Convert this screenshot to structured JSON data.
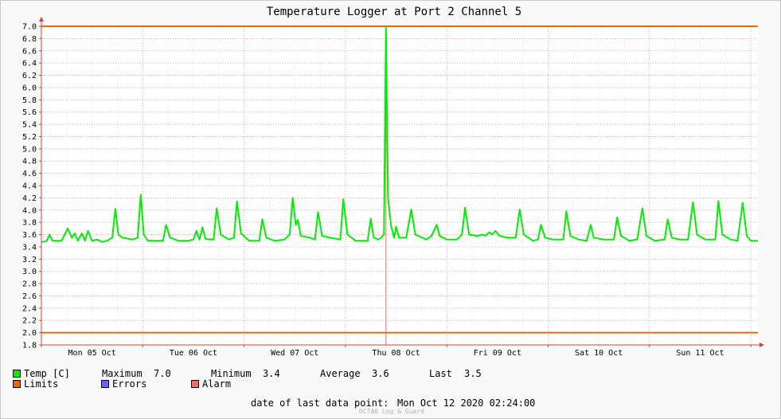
{
  "chart_data": {
    "type": "line",
    "title": "Temperature Logger at Port 2 Channel 5",
    "ylim": [
      1.8,
      7.0
    ],
    "yticks": [
      "1.8",
      "2.0",
      "2.2",
      "2.4",
      "2.6",
      "2.8",
      "3.0",
      "3.2",
      "3.4",
      "3.6",
      "3.8",
      "4.0",
      "4.2",
      "4.4",
      "4.6",
      "4.8",
      "5.0",
      "5.2",
      "5.4",
      "5.6",
      "5.8",
      "6.0",
      "6.2",
      "6.4",
      "6.6",
      "6.8",
      "7.0"
    ],
    "xticks": [
      {
        "label": "Mon 05 Oct",
        "day": 0.5
      },
      {
        "label": "Tue 06 Oct",
        "day": 1.5
      },
      {
        "label": "Wed 07 Oct",
        "day": 2.5
      },
      {
        "label": "Thu 08 Oct",
        "day": 3.5
      },
      {
        "label": "Fri 09 Oct",
        "day": 4.5
      },
      {
        "label": "Sat 10 Oct",
        "day": 5.5
      },
      {
        "label": "Sun 11 Oct",
        "day": 6.5
      }
    ],
    "xlim_days": [
      0.0,
      7.07
    ],
    "grid": true,
    "limits": [
      2.0,
      7.0
    ],
    "alarm_marker_day": 3.4,
    "series": [
      {
        "name": "Temp [C]",
        "color": "#00ee00",
        "points": [
          [
            0.0,
            3.48
          ],
          [
            0.05,
            3.49
          ],
          [
            0.08,
            3.6
          ],
          [
            0.11,
            3.5
          ],
          [
            0.2,
            3.5
          ],
          [
            0.26,
            3.7
          ],
          [
            0.3,
            3.55
          ],
          [
            0.33,
            3.62
          ],
          [
            0.36,
            3.5
          ],
          [
            0.4,
            3.62
          ],
          [
            0.43,
            3.5
          ],
          [
            0.46,
            3.66
          ],
          [
            0.5,
            3.5
          ],
          [
            0.55,
            3.52
          ],
          [
            0.6,
            3.48
          ],
          [
            0.65,
            3.5
          ],
          [
            0.7,
            3.55
          ],
          [
            0.73,
            4.02
          ],
          [
            0.76,
            3.6
          ],
          [
            0.8,
            3.55
          ],
          [
            0.9,
            3.52
          ],
          [
            0.95,
            3.55
          ],
          [
            0.98,
            4.25
          ],
          [
            1.01,
            3.6
          ],
          [
            1.05,
            3.5
          ],
          [
            1.15,
            3.5
          ],
          [
            1.2,
            3.5
          ],
          [
            1.23,
            3.76
          ],
          [
            1.27,
            3.55
          ],
          [
            1.35,
            3.5
          ],
          [
            1.45,
            3.5
          ],
          [
            1.5,
            3.52
          ],
          [
            1.53,
            3.66
          ],
          [
            1.56,
            3.52
          ],
          [
            1.59,
            3.72
          ],
          [
            1.62,
            3.53
          ],
          [
            1.7,
            3.52
          ],
          [
            1.73,
            4.03
          ],
          [
            1.77,
            3.6
          ],
          [
            1.85,
            3.52
          ],
          [
            1.9,
            3.55
          ],
          [
            1.93,
            4.14
          ],
          [
            1.97,
            3.62
          ],
          [
            2.05,
            3.5
          ],
          [
            2.15,
            3.5
          ],
          [
            2.18,
            3.85
          ],
          [
            2.22,
            3.55
          ],
          [
            2.3,
            3.5
          ],
          [
            2.4,
            3.52
          ],
          [
            2.45,
            3.6
          ],
          [
            2.48,
            4.2
          ],
          [
            2.51,
            3.76
          ],
          [
            2.53,
            3.84
          ],
          [
            2.56,
            3.58
          ],
          [
            2.65,
            3.55
          ],
          [
            2.7,
            3.52
          ],
          [
            2.73,
            3.97
          ],
          [
            2.77,
            3.58
          ],
          [
            2.85,
            3.55
          ],
          [
            2.95,
            3.52
          ],
          [
            2.98,
            4.18
          ],
          [
            3.02,
            3.6
          ],
          [
            3.1,
            3.5
          ],
          [
            3.22,
            3.5
          ],
          [
            3.25,
            3.86
          ],
          [
            3.28,
            3.55
          ],
          [
            3.33,
            3.52
          ],
          [
            3.38,
            3.6
          ],
          [
            3.4,
            6.98
          ],
          [
            3.41,
            5.55
          ],
          [
            3.42,
            4.2
          ],
          [
            3.45,
            3.75
          ],
          [
            3.48,
            3.55
          ],
          [
            3.5,
            3.73
          ],
          [
            3.53,
            3.55
          ],
          [
            3.6,
            3.55
          ],
          [
            3.65,
            4.01
          ],
          [
            3.69,
            3.6
          ],
          [
            3.8,
            3.52
          ],
          [
            3.85,
            3.58
          ],
          [
            3.9,
            3.76
          ],
          [
            3.93,
            3.58
          ],
          [
            4.0,
            3.52
          ],
          [
            4.1,
            3.52
          ],
          [
            4.15,
            3.6
          ],
          [
            4.18,
            4.04
          ],
          [
            4.22,
            3.6
          ],
          [
            4.3,
            3.58
          ],
          [
            4.35,
            3.6
          ],
          [
            4.38,
            3.58
          ],
          [
            4.42,
            3.64
          ],
          [
            4.45,
            3.6
          ],
          [
            4.48,
            3.66
          ],
          [
            4.52,
            3.58
          ],
          [
            4.6,
            3.55
          ],
          [
            4.68,
            3.55
          ],
          [
            4.72,
            4.01
          ],
          [
            4.76,
            3.6
          ],
          [
            4.85,
            3.5
          ],
          [
            4.9,
            3.52
          ],
          [
            4.93,
            3.76
          ],
          [
            4.97,
            3.55
          ],
          [
            5.05,
            3.52
          ],
          [
            5.15,
            3.52
          ],
          [
            5.18,
            3.98
          ],
          [
            5.22,
            3.58
          ],
          [
            5.3,
            3.52
          ],
          [
            5.38,
            3.5
          ],
          [
            5.42,
            3.76
          ],
          [
            5.45,
            3.55
          ],
          [
            5.55,
            3.52
          ],
          [
            5.65,
            3.52
          ],
          [
            5.68,
            3.88
          ],
          [
            5.72,
            3.58
          ],
          [
            5.8,
            3.5
          ],
          [
            5.88,
            3.52
          ],
          [
            5.93,
            4.03
          ],
          [
            5.97,
            3.58
          ],
          [
            6.05,
            3.5
          ],
          [
            6.15,
            3.52
          ],
          [
            6.18,
            3.85
          ],
          [
            6.22,
            3.55
          ],
          [
            6.3,
            3.52
          ],
          [
            6.38,
            3.52
          ],
          [
            6.43,
            4.13
          ],
          [
            6.47,
            3.6
          ],
          [
            6.55,
            3.52
          ],
          [
            6.65,
            3.52
          ],
          [
            6.68,
            4.15
          ],
          [
            6.72,
            3.6
          ],
          [
            6.8,
            3.52
          ],
          [
            6.87,
            3.5
          ],
          [
            6.92,
            4.12
          ],
          [
            6.96,
            3.58
          ],
          [
            7.0,
            3.5
          ],
          [
            7.07,
            3.5
          ]
        ]
      }
    ]
  },
  "legend": {
    "temp_label": "Temp [C]",
    "temp_color": "#00ee00",
    "max_label": "Maximum",
    "max_value": "7.0",
    "min_label": "Minimum",
    "min_value": "3.4",
    "avg_label": "Average",
    "avg_value": "3.6",
    "last_label": "Last",
    "last_value": "3.5",
    "limits_label": "Limits",
    "limits_color": "#ee6600",
    "errors_label": "Errors",
    "errors_color": "#6666ff",
    "alarm_label": "Alarm",
    "alarm_color": "#ff6666"
  },
  "footer": {
    "last_point_label": "date of last data point:",
    "last_point_value": "Mon Oct 12 2020 02:24:00",
    "watermark": "OCTA6 Log & Guard"
  }
}
